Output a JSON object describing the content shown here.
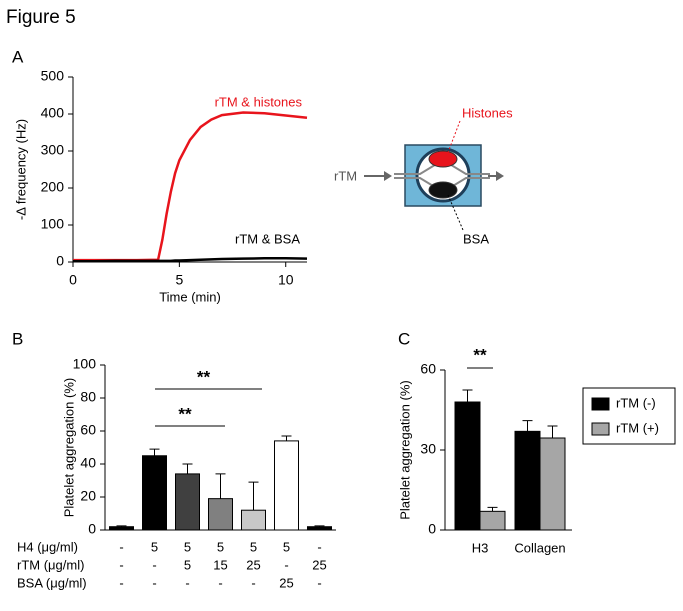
{
  "figure_title": "Figure 5",
  "diagram": {
    "input": "rTM",
    "top": "Histones",
    "bottom": "BSA"
  },
  "chart_data": [
    {
      "type": "line",
      "panel": "A",
      "xlabel": "Time (min)",
      "ylabel": "-Δ frequency (Hz)",
      "x": [
        0,
        1,
        2,
        3,
        4,
        4.2,
        4.4,
        4.6,
        4.8,
        5,
        5.5,
        6,
        6.5,
        7,
        8,
        9,
        10,
        11
      ],
      "series": [
        {
          "name": "rTM & histones",
          "color": "#e8141c",
          "values": [
            5,
            5,
            5,
            5,
            6,
            60,
            130,
            190,
            240,
            275,
            330,
            365,
            385,
            397,
            404,
            402,
            396,
            390
          ]
        },
        {
          "name": "rTM & BSA",
          "color": "#000000",
          "values": [
            2,
            2,
            3,
            3,
            3,
            3,
            3,
            3,
            4,
            4,
            5,
            6,
            7,
            8,
            9,
            10,
            10,
            9
          ]
        }
      ],
      "xlim": [
        0,
        11
      ],
      "ylim": [
        0,
        500
      ],
      "xticks": [
        0,
        5,
        10
      ],
      "yticks": [
        0,
        100,
        200,
        300,
        400,
        500
      ]
    },
    {
      "type": "bar",
      "panel": "B",
      "ylabel": "Platelet aggregation (%)",
      "values": [
        2,
        45,
        34,
        19,
        12,
        54,
        2
      ],
      "errors": [
        0.5,
        4,
        6,
        15,
        17,
        3,
        0.5
      ],
      "colors": [
        "#000000",
        "#000000",
        "#404040",
        "#808080",
        "#c8c8c8",
        "#ffffff",
        "#000000"
      ],
      "condition_rows": [
        {
          "label": "H4 (μg/ml)",
          "values": [
            "-",
            "5",
            "5",
            "5",
            "5",
            "5",
            "-"
          ]
        },
        {
          "label": "rTM (μg/ml)",
          "values": [
            "-",
            "-",
            "5",
            "15",
            "25",
            "-",
            "25"
          ]
        },
        {
          "label": "BSA (μg/ml)",
          "values": [
            "-",
            "-",
            "-",
            "-",
            "-",
            "25",
            "-"
          ]
        }
      ],
      "significance": [
        "**",
        "**"
      ],
      "ylim": [
        0,
        100
      ],
      "yticks": [
        0,
        20,
        40,
        60,
        80,
        100
      ]
    },
    {
      "type": "bar",
      "panel": "C",
      "ylabel": "Platelet aggregation (%)",
      "categories": [
        "H3",
        "Collagen"
      ],
      "series": [
        {
          "name": "rTM (-)",
          "color": "#000000",
          "values": [
            48,
            37
          ],
          "errors": [
            4.5,
            4
          ]
        },
        {
          "name": "rTM (+)",
          "color": "#a6a6a6",
          "values": [
            7,
            34.5
          ],
          "errors": [
            1.5,
            4.5
          ]
        }
      ],
      "significance": [
        "**"
      ],
      "legend": "right",
      "ylim": [
        0,
        60
      ],
      "yticks": [
        0,
        30,
        60
      ]
    }
  ]
}
